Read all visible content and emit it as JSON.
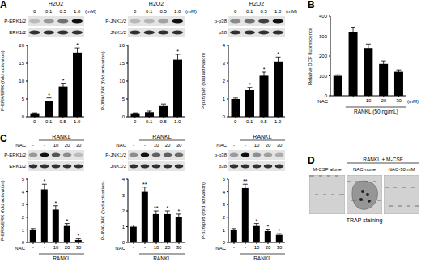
{
  "chart_data": [
    {
      "type": "bar",
      "panel_label": "A",
      "header": "H2O2",
      "category_unit": "(mM)",
      "blot_labels": [
        "P-ERK1/2",
        "ERK1/2"
      ],
      "categories": [
        "0",
        "0.1",
        "0.5",
        "1.0"
      ],
      "values": [
        1,
        4.5,
        8.5,
        18
      ],
      "errors": [
        0.1,
        0.8,
        0.9,
        1.3
      ],
      "significance": [
        null,
        "*",
        "*",
        "*"
      ],
      "ylabel": "P-ERK/ERK (fold activation)",
      "ylim": [
        0,
        20
      ],
      "yticks": [
        0,
        5,
        10,
        15,
        20
      ],
      "color": "#000000"
    },
    {
      "type": "bar",
      "header": "H2O2",
      "category_unit": "(mM)",
      "blot_labels": [
        "P-JNK1/2",
        "JNK1/2"
      ],
      "categories": [
        "0",
        "0.1",
        "0.5",
        "1.0"
      ],
      "values": [
        1,
        1.3,
        3,
        16
      ],
      "errors": [
        0.1,
        0.3,
        0.6,
        1.5
      ],
      "significance": [
        null,
        null,
        null,
        "*"
      ],
      "ylabel": "P-JNK/JNK (fold activation)",
      "ylim": [
        0,
        20
      ],
      "yticks": [
        0,
        5,
        10,
        15,
        20
      ],
      "color": "#000000"
    },
    {
      "type": "bar",
      "header": "H2O2",
      "category_unit": "(mM)",
      "blot_labels": [
        "p-p38",
        "p38"
      ],
      "categories": [
        "0",
        "0.1",
        "0.5",
        "1.0"
      ],
      "values": [
        1,
        1.5,
        2.3,
        3.1
      ],
      "errors": [
        0.05,
        0.15,
        0.2,
        0.25
      ],
      "significance": [
        null,
        "*",
        "*",
        "*"
      ],
      "ylabel": "P-p38/p38 (fold activation)",
      "ylim": [
        0,
        4
      ],
      "yticks": [
        0,
        1,
        2,
        3,
        4
      ],
      "color": "#000000"
    },
    {
      "type": "bar",
      "panel_label": "B",
      "category_label": "NAC",
      "category_unit": "(mM)",
      "group_label": "RANKL (50 ng/mL)",
      "categories": [
        "-",
        "-",
        "10",
        "20",
        "30"
      ],
      "values": [
        100,
        320,
        240,
        160,
        120
      ],
      "errors": [
        5,
        25,
        20,
        15,
        10
      ],
      "ylabel": "Relative DCF fluorescence",
      "ylim": [
        0,
        400
      ],
      "yticks": [
        0,
        100,
        200,
        300,
        400
      ],
      "color": "#000000"
    },
    {
      "type": "bar",
      "panel_label": "C",
      "group_label": "RANKL",
      "category_label": "NAC",
      "blot_labels": [
        "P-ERK1/2",
        "ERK1/2"
      ],
      "categories": [
        "-",
        "-",
        "10",
        "20",
        "30"
      ],
      "values": [
        1,
        4.2,
        2.6,
        1.3,
        0.2
      ],
      "errors": [
        0.1,
        0.4,
        0.3,
        0.2,
        0.1
      ],
      "significance": [
        null,
        "*",
        "*",
        "*",
        "*"
      ],
      "ylabel": "P-ERK/ERK (fold activation)",
      "ylim": [
        0,
        5
      ],
      "yticks": [
        0,
        1,
        2,
        3,
        4,
        5
      ],
      "color": "#000000"
    },
    {
      "type": "bar",
      "group_label": "RANKL",
      "category_label": "NAC",
      "blot_labels": [
        "P-JNK1/2",
        "JNK1/2"
      ],
      "categories": [
        "-",
        "-",
        "10",
        "20",
        "30"
      ],
      "values": [
        1,
        3.2,
        1.8,
        1.8,
        1.6
      ],
      "errors": [
        0.1,
        0.3,
        0.2,
        0.2,
        0.2
      ],
      "significance": [
        null,
        "**",
        "**",
        "*",
        "*"
      ],
      "ylabel": "P-JNK/JNK (fold activation)",
      "ylim": [
        0,
        4
      ],
      "yticks": [
        0,
        1,
        2,
        3,
        4
      ],
      "color": "#000000"
    },
    {
      "type": "bar",
      "group_label": "RANKL",
      "category_label": "NAC",
      "blot_labels": [
        "p-p38",
        "p38"
      ],
      "categories": [
        "-",
        "-",
        "10",
        "20",
        "30"
      ],
      "values": [
        1,
        4.3,
        1.3,
        0.9,
        0.6
      ],
      "errors": [
        0.1,
        0.3,
        0.2,
        0.15,
        0.1
      ],
      "significance": [
        null,
        "**",
        "*",
        "*",
        "*"
      ],
      "ylabel": "P-p38/p38 (fold activation)",
      "ylim": [
        0,
        5
      ],
      "yticks": [
        0,
        1,
        2,
        3,
        4,
        5
      ],
      "color": "#000000"
    }
  ],
  "image_panel": {
    "panel_label": "D",
    "header": "RANKL + M-CSF",
    "images": [
      "M-CSF alone",
      "NAC-none",
      "NAC-30 mM"
    ],
    "caption": "TRAP staining"
  }
}
